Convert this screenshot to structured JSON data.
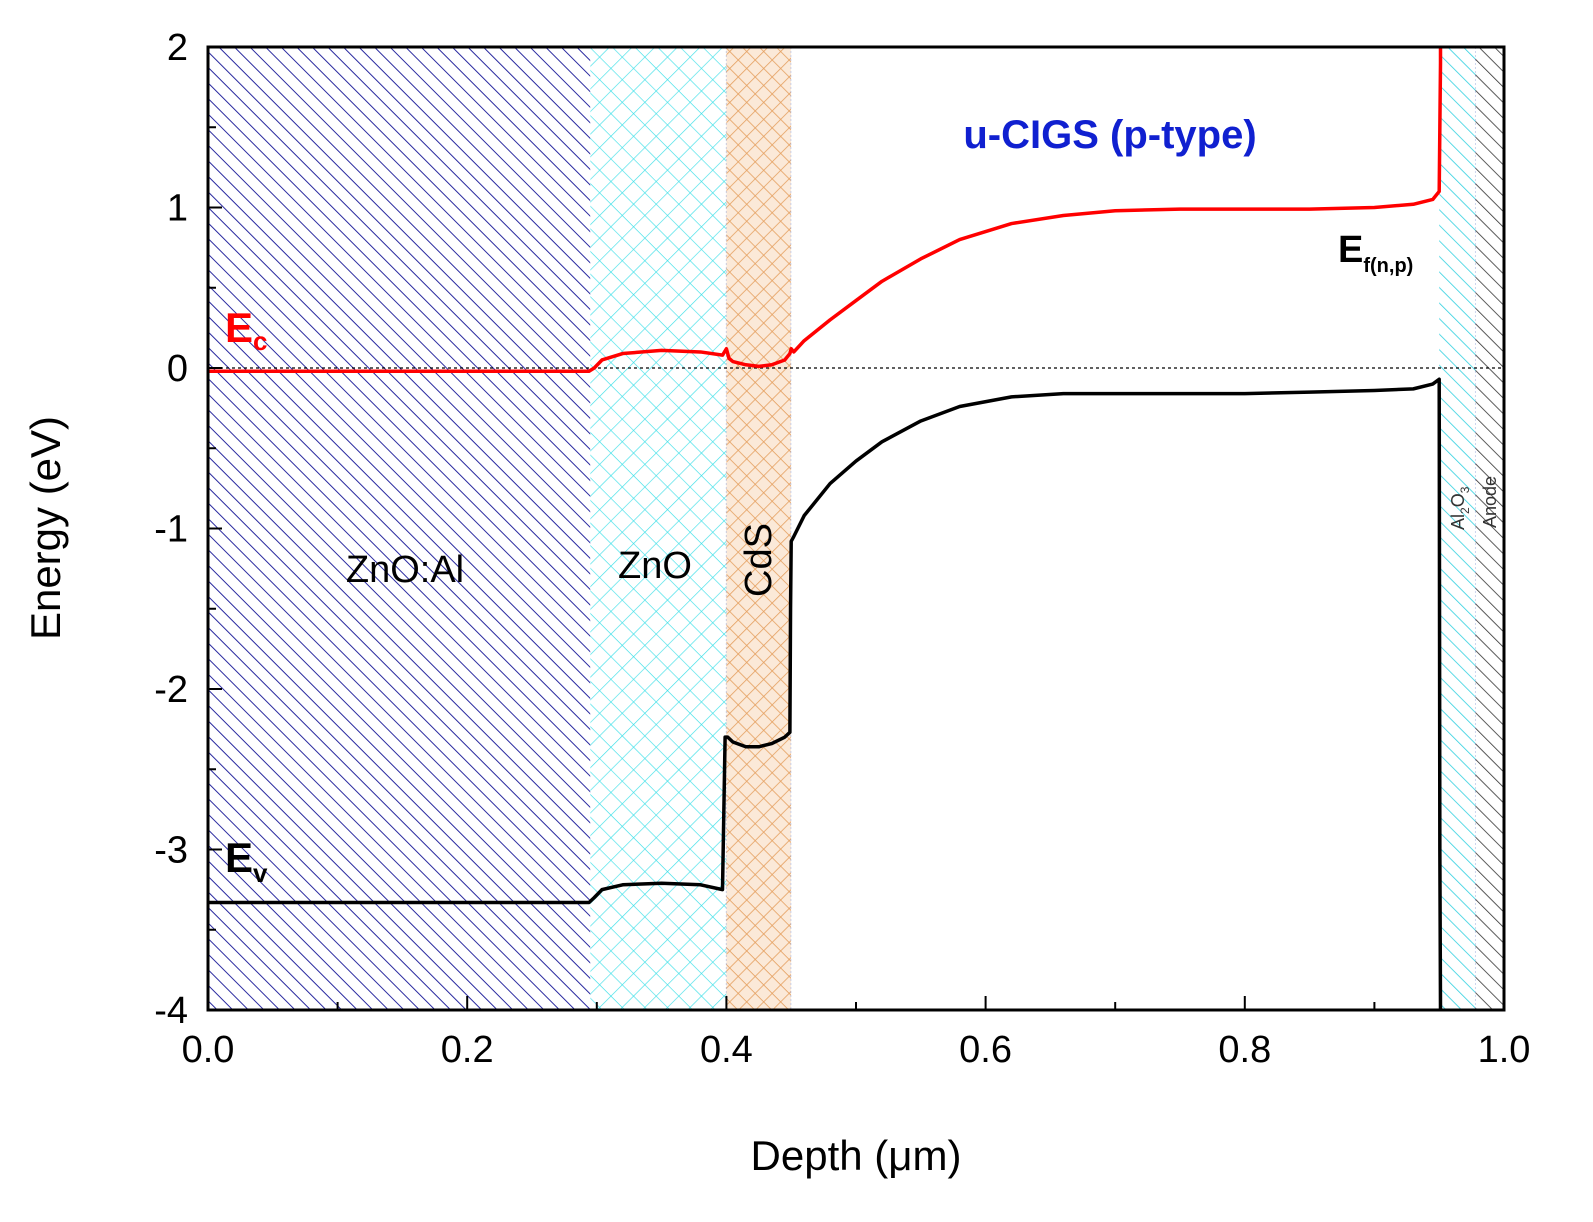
{
  "chart_data": {
    "type": "line",
    "title": "",
    "xlabel": "Depth (μm)",
    "ylabel": "Energy (eV)",
    "xlim": [
      0.0,
      1.0
    ],
    "ylim": [
      -4,
      2
    ],
    "x_ticks": [
      "0.0",
      "0.2",
      "0.4",
      "0.6",
      "0.8",
      "1.0"
    ],
    "y_ticks": [
      "2",
      "1",
      "0",
      "-1",
      "-2",
      "-3",
      "-4"
    ],
    "grid": false,
    "regions": [
      {
        "name": "ZnO:Al",
        "label": "ZnO:Al",
        "x_start": 0.0,
        "x_end": 0.295,
        "color": "#2a2aa0",
        "pattern": "diag-dense"
      },
      {
        "name": "ZnO",
        "label": "ZnO",
        "x_start": 0.295,
        "x_end": 0.4,
        "color": "#00d8e0",
        "pattern": "cross"
      },
      {
        "name": "CdS",
        "label": "CdS",
        "x_start": 0.4,
        "x_end": 0.45,
        "color": "#e09a50",
        "pattern": "cross"
      },
      {
        "name": "u-CIGS",
        "label": "u-CIGS (p-type)",
        "x_start": 0.45,
        "x_end": 0.95,
        "color": "#ffffff",
        "pattern": "none"
      },
      {
        "name": "Al2O3",
        "label": "Al",
        "label_sub1": "2",
        "label_mid": "O",
        "label_sub2": "3",
        "x_start": 0.95,
        "x_end": 0.978,
        "color": "#00d8e0",
        "pattern": "diag"
      },
      {
        "name": "Anode",
        "label": "Anode",
        "x_start": 0.978,
        "x_end": 1.0,
        "color": "#333333",
        "pattern": "diag"
      }
    ],
    "fermi_level": {
      "y": 0,
      "label": "E",
      "subscript": "f(n,p)"
    },
    "series": [
      {
        "name": "Ec",
        "label": "E",
        "subscript": "c",
        "color": "#ff0000",
        "x": [
          0.0,
          0.294,
          0.298,
          0.304,
          0.32,
          0.35,
          0.38,
          0.397,
          0.4,
          0.402,
          0.405,
          0.415,
          0.425,
          0.435,
          0.445,
          0.449,
          0.45,
          0.452,
          0.46,
          0.48,
          0.5,
          0.52,
          0.55,
          0.58,
          0.62,
          0.66,
          0.7,
          0.75,
          0.8,
          0.85,
          0.9,
          0.93,
          0.945,
          0.95,
          0.9505,
          0.951,
          0.951
        ],
        "y": [
          -0.02,
          -0.02,
          0.0,
          0.05,
          0.09,
          0.11,
          0.1,
          0.08,
          0.12,
          0.06,
          0.04,
          0.02,
          0.01,
          0.02,
          0.05,
          0.09,
          0.12,
          0.1,
          0.17,
          0.3,
          0.42,
          0.54,
          0.68,
          0.8,
          0.9,
          0.95,
          0.98,
          0.99,
          0.99,
          0.99,
          1.0,
          1.02,
          1.05,
          1.1,
          1.5,
          1.9,
          2.0
        ]
      },
      {
        "name": "Ev",
        "label": "E",
        "subscript": "v",
        "color": "#000000",
        "x": [
          0.0,
          0.294,
          0.298,
          0.304,
          0.32,
          0.35,
          0.38,
          0.397,
          0.399,
          0.401,
          0.405,
          0.415,
          0.425,
          0.435,
          0.445,
          0.449,
          0.4495,
          0.45,
          0.452,
          0.46,
          0.48,
          0.5,
          0.52,
          0.55,
          0.58,
          0.62,
          0.66,
          0.7,
          0.75,
          0.8,
          0.85,
          0.9,
          0.93,
          0.945,
          0.95,
          0.9505,
          0.951
        ],
        "y": [
          -3.33,
          -3.33,
          -3.3,
          -3.25,
          -3.22,
          -3.21,
          -3.22,
          -3.25,
          -2.3,
          -2.3,
          -2.33,
          -2.36,
          -2.36,
          -2.34,
          -2.3,
          -2.27,
          -1.5,
          -1.08,
          -1.05,
          -0.92,
          -0.72,
          -0.58,
          -0.46,
          -0.33,
          -0.24,
          -0.18,
          -0.16,
          -0.16,
          -0.16,
          -0.16,
          -0.15,
          -0.14,
          -0.13,
          -0.1,
          -0.07,
          -3.0,
          -4.0
        ]
      }
    ],
    "annotations": [
      {
        "text": "u-CIGS (p-type)",
        "x": 0.7,
        "y": 1.5,
        "color": "#1020d0"
      }
    ]
  }
}
